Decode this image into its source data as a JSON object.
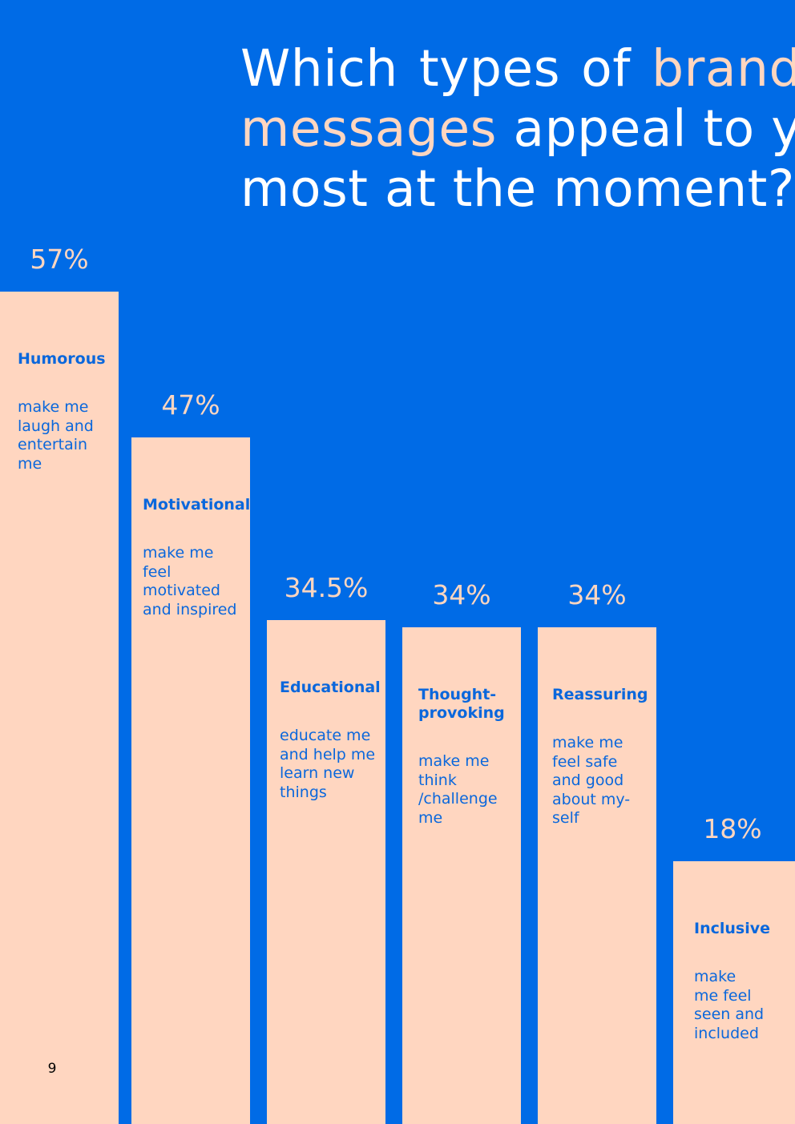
{
  "colors": {
    "background": "#006be6",
    "bar": "#ffd6c0",
    "accent": "#ffd6c0",
    "title_text": "#ffffff",
    "label_text": "#0a67dc",
    "page_number_text": "#000000"
  },
  "title": {
    "words_line1": [
      "Which",
      "types",
      "of"
    ],
    "accent_line1": "brand",
    "accent_line2": "messages",
    "rest_line2": " appeal to you",
    "line3": "most at the moment?"
  },
  "page_number": "9",
  "chart_data": {
    "type": "bar",
    "title": "Which types of brand messages appeal to you most at the moment?",
    "xlabel": "",
    "ylabel": "",
    "ylim": [
      0,
      100
    ],
    "grid": false,
    "legend": "none",
    "categories": [
      "Humorous",
      "Motivational",
      "Educational",
      "Thought-\nprovoking",
      "Reassuring",
      "Inclusive"
    ],
    "descriptions": [
      "make me\nlaugh and\nentertain\nme",
      "make me\nfeel\nmotivated\nand inspired",
      "educate me\nand help me\nlearn new\nthings",
      "make me\nthink\n/challenge\nme",
      "make me\nfeel safe\nand good\nabout my-\nself",
      "make\nme feel\nseen and\nincluded"
    ],
    "values": [
      57,
      47,
      34.5,
      34,
      34,
      18
    ],
    "value_labels": [
      "57%",
      "47%",
      "34.5%",
      "34%",
      "34%",
      "18%"
    ]
  }
}
